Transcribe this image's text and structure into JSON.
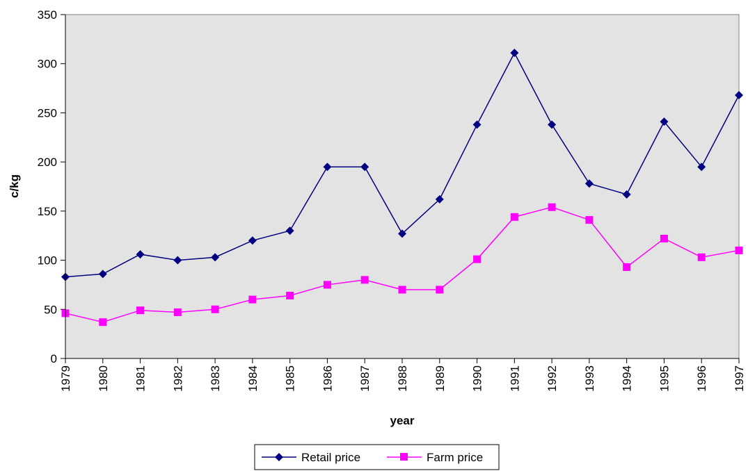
{
  "chart_data": {
    "type": "line",
    "title": "",
    "xlabel": "year",
    "ylabel": "c/kg",
    "ylim": [
      0,
      350
    ],
    "yticks": [
      0,
      50,
      100,
      150,
      200,
      250,
      300,
      350
    ],
    "grid": false,
    "legend_position": "bottom-center",
    "background_color": "#E3E3E3",
    "x": [
      1979,
      1980,
      1981,
      1982,
      1983,
      1984,
      1985,
      1986,
      1987,
      1988,
      1989,
      1990,
      1991,
      1992,
      1993,
      1994,
      1995,
      1996,
      1997
    ],
    "series": [
      {
        "name": "Retail price",
        "color": "#000080",
        "marker": "diamond",
        "values": [
          83,
          86,
          106,
          100,
          103,
          120,
          130,
          195,
          195,
          127,
          162,
          238,
          311,
          238,
          178,
          167,
          241,
          195,
          268
        ]
      },
      {
        "name": "Farm price",
        "color": "#FF00FF",
        "marker": "square",
        "values": [
          46,
          37,
          49,
          47,
          50,
          60,
          64,
          75,
          80,
          70,
          70,
          101,
          144,
          154,
          141,
          93,
          122,
          103,
          110
        ]
      }
    ]
  }
}
